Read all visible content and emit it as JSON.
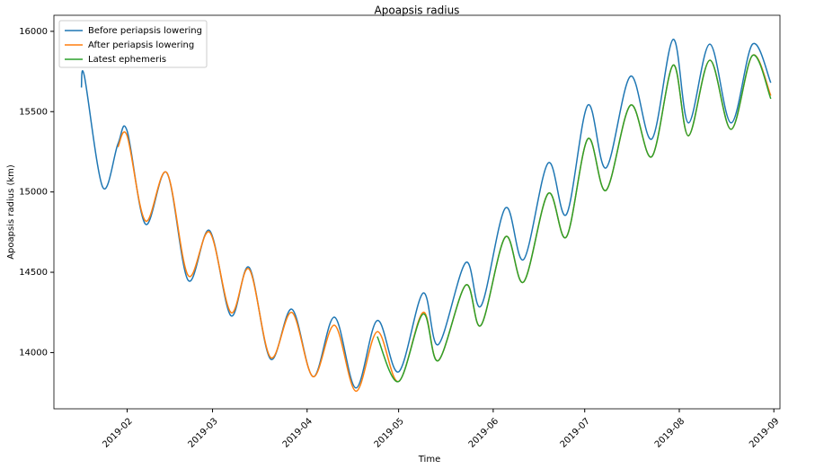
{
  "chart_data": {
    "type": "line",
    "title": "Apoapsis radius",
    "xlabel": "Time",
    "ylabel": "Apoapsis radius (km)",
    "x": [
      "2019-01-17",
      "2019-01-18",
      "2019-01-24",
      "2019-01-29",
      "2019-02-01",
      "2019-02-07",
      "2019-02-14",
      "2019-02-21",
      "2019-02-28",
      "2019-03-07",
      "2019-03-13",
      "2019-03-20",
      "2019-03-27",
      "2019-04-03",
      "2019-04-10",
      "2019-04-17",
      "2019-04-24",
      "2019-05-01",
      "2019-05-09",
      "2019-05-14",
      "2019-05-23",
      "2019-05-28",
      "2019-06-05",
      "2019-06-11",
      "2019-06-19",
      "2019-06-25",
      "2019-07-02",
      "2019-07-08",
      "2019-07-16",
      "2019-07-23",
      "2019-07-30",
      "2019-08-04",
      "2019-08-11",
      "2019-08-18",
      "2019-08-25",
      "2019-08-31"
    ],
    "series": [
      {
        "name": "Before periapsis lowering",
        "color": "#1f77b4",
        "values": [
          15650,
          15720,
          15030,
          15300,
          15380,
          14800,
          15120,
          14450,
          14760,
          14230,
          14530,
          13960,
          14270,
          13850,
          14220,
          13780,
          14200,
          13880,
          14370,
          14050,
          14560,
          14290,
          14900,
          14580,
          15180,
          14860,
          15540,
          15150,
          15720,
          15330,
          15950,
          15430,
          15920,
          15430,
          15920,
          15680
        ]
      },
      {
        "name": "After periapsis lowering",
        "color": "#ff7f0e",
        "values": [
          null,
          null,
          null,
          15280,
          15350,
          14820,
          15120,
          14480,
          14750,
          14250,
          14520,
          13970,
          14250,
          13850,
          14170,
          13760,
          14130,
          13820,
          14250,
          13950,
          14420,
          14170,
          14720,
          14440,
          14990,
          14720,
          15330,
          15010,
          15540,
          15220,
          15790,
          15350,
          15820,
          15390,
          15850,
          15600
        ]
      },
      {
        "name": "Latest ephemeris",
        "color": "#2ca02c",
        "values": [
          null,
          null,
          null,
          null,
          null,
          null,
          null,
          null,
          null,
          null,
          null,
          null,
          null,
          null,
          null,
          null,
          14100,
          13820,
          14240,
          13950,
          14420,
          14170,
          14720,
          14440,
          14990,
          14720,
          15330,
          15010,
          15540,
          15220,
          15790,
          15350,
          15820,
          15390,
          15850,
          15580
        ]
      }
    ],
    "xlim": [
      "2019-01-08",
      "2019-09-03"
    ],
    "xticks": [
      {
        "value": "2019-02-01",
        "label": "2019-02"
      },
      {
        "value": "2019-03-01",
        "label": "2019-03"
      },
      {
        "value": "2019-04-01",
        "label": "2019-04"
      },
      {
        "value": "2019-05-01",
        "label": "2019-05"
      },
      {
        "value": "2019-06-01",
        "label": "2019-06"
      },
      {
        "value": "2019-07-01",
        "label": "2019-07"
      },
      {
        "value": "2019-08-01",
        "label": "2019-08"
      },
      {
        "value": "2019-09-01",
        "label": "2019-09"
      }
    ],
    "ylim": [
      13650,
      16100
    ],
    "yticks": [
      14000,
      14500,
      15000,
      15500,
      16000
    ],
    "grid": false,
    "legend": "upper left"
  }
}
